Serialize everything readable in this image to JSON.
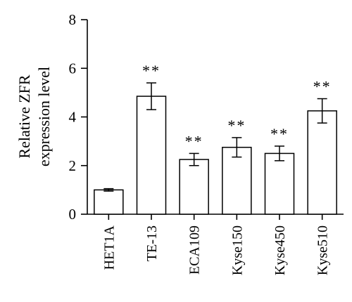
{
  "chart_data": {
    "type": "bar",
    "categories": [
      "HET1A",
      "TE-13",
      "ECA109",
      "Kyse150",
      "Kyse450",
      "Kyse510"
    ],
    "values": [
      1.0,
      4.85,
      2.25,
      2.75,
      2.5,
      4.25
    ],
    "errors": [
      0.05,
      0.55,
      0.25,
      0.4,
      0.3,
      0.5
    ],
    "significance": [
      "",
      "**",
      "**",
      "**",
      "**",
      "**"
    ],
    "title": "",
    "xlabel": "",
    "ylabel_lines": [
      "Relative ZFR",
      "expression level"
    ],
    "ylim": [
      0,
      8
    ],
    "yticks": [
      "0",
      "2",
      "4",
      "6",
      "8"
    ],
    "grid": false
  }
}
